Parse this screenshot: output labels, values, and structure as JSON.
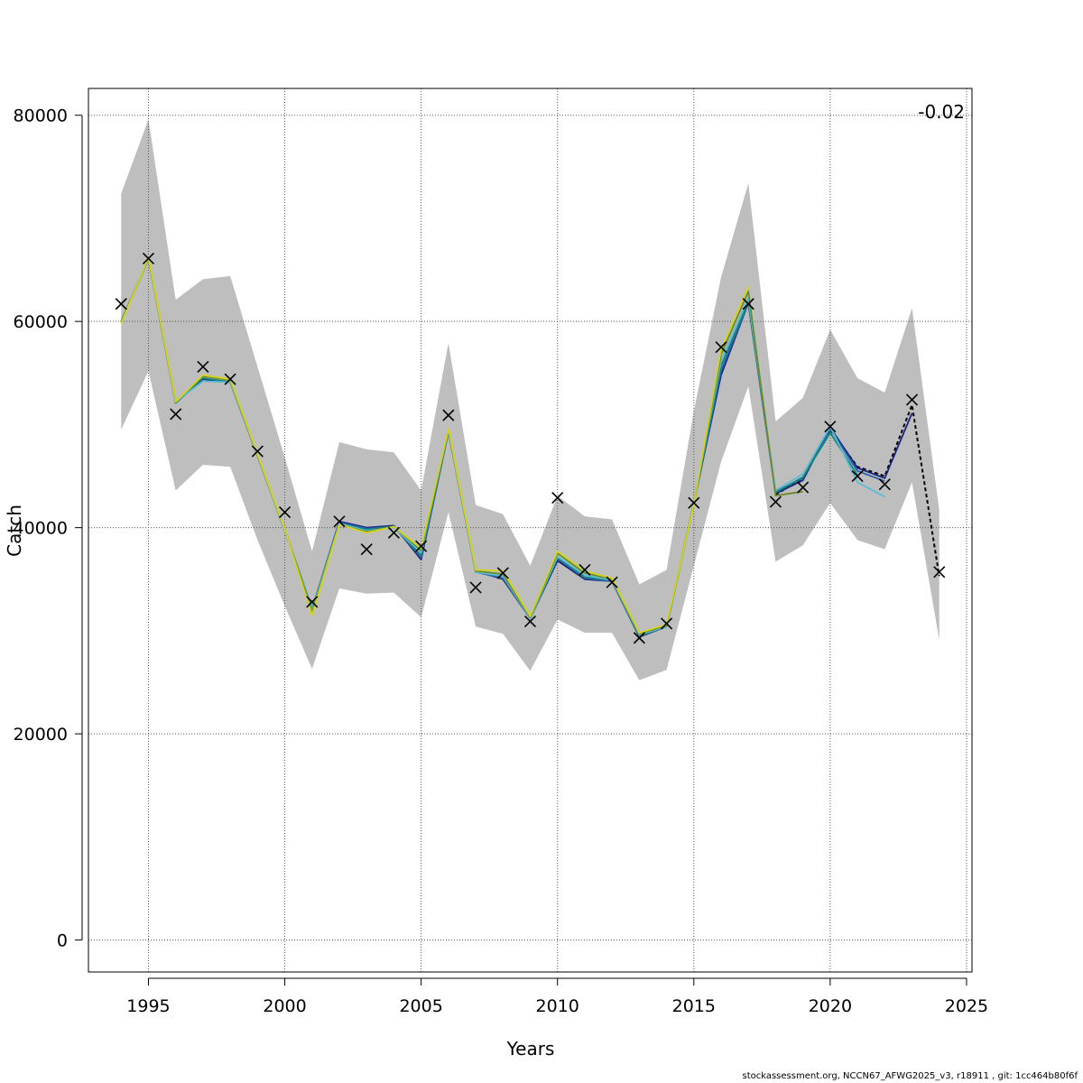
{
  "chart_data": {
    "type": "line",
    "xlabel": "Years",
    "ylabel": "Catch",
    "xlim": [
      1992.8,
      2025.2
    ],
    "ylim": [
      -3100,
      82600
    ],
    "grid": true,
    "annotation": "-0.02",
    "footer": "stockassessment.org, NCCN67_AFWG2025_v3, r18911 , git: 1cc464b80f6f",
    "x_ticks": [
      1995,
      2000,
      2005,
      2010,
      2015,
      2020,
      2025
    ],
    "y_ticks": [
      0,
      20000,
      40000,
      60000,
      80000
    ],
    "band": {
      "color": "#bebebe",
      "x": [
        1994,
        1995,
        1996,
        1997,
        1998,
        1999,
        2000,
        2001,
        2002,
        2003,
        2004,
        2005,
        2006,
        2007,
        2008,
        2009,
        2010,
        2011,
        2012,
        2013,
        2014,
        2015,
        2016,
        2017,
        2018,
        2019,
        2020,
        2021,
        2022,
        2023,
        2024
      ],
      "lower": [
        49500,
        55200,
        43600,
        46100,
        45900,
        38800,
        32400,
        26300,
        34100,
        33600,
        33700,
        31300,
        41500,
        30400,
        29700,
        26100,
        31100,
        29800,
        29800,
        25200,
        26200,
        36300,
        46400,
        53700,
        36700,
        38300,
        42400,
        38800,
        37900,
        44400,
        29100
      ],
      "upper": [
        72400,
        79600,
        62100,
        64100,
        64400,
        55600,
        46800,
        37700,
        48300,
        47600,
        47300,
        43600,
        57900,
        42200,
        41300,
        36300,
        43100,
        41100,
        40800,
        34500,
        35900,
        51300,
        64300,
        73400,
        50300,
        52600,
        59200,
        54500,
        53100,
        61300,
        41700
      ]
    },
    "observed": {
      "marker": "x",
      "x": [
        1994,
        1995,
        1996,
        1997,
        1998,
        1999,
        2000,
        2001,
        2002,
        2003,
        2004,
        2005,
        2006,
        2007,
        2008,
        2009,
        2010,
        2011,
        2012,
        2013,
        2014,
        2015,
        2016,
        2017,
        2018,
        2019,
        2020,
        2021,
        2022,
        2023,
        2024
      ],
      "y": [
        61700,
        66100,
        51000,
        55600,
        54400,
        47400,
        41500,
        32800,
        40600,
        37900,
        39500,
        38200,
        50900,
        34200,
        35600,
        30900,
        42900,
        35900,
        34700,
        29300,
        30700,
        42400,
        57500,
        61700,
        42500,
        43900,
        49800,
        45000,
        44200,
        52400,
        35700
      ]
    },
    "series": [
      {
        "color": "#000000",
        "dashed": true,
        "x": [
          2018,
          2019,
          2020,
          2021,
          2022,
          2023,
          2024
        ],
        "y": [
          43200,
          44800,
          49500,
          45900,
          45000,
          51900,
          35300
        ]
      },
      {
        "color": "#1a237e",
        "x": [
          1994,
          1995,
          1996,
          1997,
          1998,
          1999,
          2000,
          2001,
          2002,
          2003,
          2004,
          2005,
          2006,
          2007,
          2008,
          2009,
          2010,
          2011,
          2012,
          2013,
          2014,
          2015,
          2016,
          2017,
          2018,
          2019,
          2020,
          2021,
          2022,
          2023
        ],
        "y": [
          59900,
          66100,
          52100,
          54400,
          54100,
          47000,
          39700,
          32100,
          40600,
          40000,
          40200,
          36900,
          49300,
          35800,
          35000,
          31200,
          36800,
          35000,
          34800,
          29400,
          30400,
          42400,
          54800,
          61800,
          43300,
          44600,
          49700,
          45800,
          44800,
          51100
        ]
      },
      {
        "color": "#2a5faa",
        "x": [
          1994,
          1995,
          1996,
          1997,
          1998,
          1999,
          2000,
          2001,
          2002,
          2003,
          2004,
          2005,
          2006,
          2007,
          2008,
          2009,
          2010,
          2011,
          2012,
          2013,
          2014,
          2015,
          2016,
          2017,
          2018,
          2019,
          2020,
          2021,
          2022
        ],
        "y": [
          60000,
          66100,
          52100,
          54500,
          54100,
          47000,
          39700,
          32100,
          40500,
          39900,
          40100,
          37100,
          49400,
          35700,
          35100,
          31200,
          37000,
          35100,
          34800,
          29500,
          30400,
          42400,
          55200,
          61800,
          43500,
          44800,
          49600,
          45500,
          44500
        ]
      },
      {
        "color": "#12877a",
        "x": [
          1994,
          1995,
          1996,
          1997,
          1998,
          1999,
          2000,
          2001,
          2002,
          2003,
          2004,
          2005,
          2006,
          2007,
          2008,
          2009,
          2010,
          2011,
          2012,
          2013,
          2014,
          2015,
          2016,
          2017,
          2018,
          2019,
          2020,
          2021
        ],
        "y": [
          60000,
          66100,
          52100,
          54500,
          54100,
          47000,
          39700,
          32100,
          40400,
          39800,
          40100,
          37300,
          49400,
          35700,
          35300,
          31200,
          37100,
          35200,
          34900,
          29500,
          30400,
          42400,
          55700,
          61900,
          43400,
          44900,
          49200,
          45100
        ]
      },
      {
        "color": "#5bbcd6",
        "x": [
          1994,
          1995,
          1996,
          1997,
          1998,
          1999,
          2000,
          2001,
          2002,
          2003,
          2004,
          2005,
          2006,
          2007,
          2008,
          2009,
          2010,
          2011,
          2012,
          2013,
          2014,
          2015,
          2016,
          2017,
          2018,
          2019,
          2020,
          2021,
          2022
        ],
        "y": [
          60000,
          66100,
          52200,
          54200,
          54100,
          47000,
          39700,
          32000,
          40400,
          39700,
          40000,
          37600,
          49400,
          35700,
          35300,
          31200,
          37200,
          35400,
          34900,
          29600,
          30400,
          42400,
          56200,
          62300,
          43600,
          45200,
          49800,
          44400,
          43000
        ]
      },
      {
        "color": "#6d8b2a",
        "x": [
          1994,
          1995,
          1996,
          1997,
          1998,
          1999,
          2000,
          2001,
          2002,
          2003,
          2004,
          2005,
          2006,
          2007,
          2008,
          2009,
          2010,
          2011,
          2012,
          2013,
          2014,
          2015,
          2016,
          2017,
          2018,
          2019
        ],
        "y": [
          60000,
          66100,
          52200,
          54700,
          54300,
          47000,
          39800,
          31800,
          40300,
          39600,
          40100,
          37800,
          49500,
          35800,
          35500,
          31300,
          37500,
          35600,
          35000,
          29700,
          30500,
          42400,
          56800,
          62900,
          43100,
          43500
        ]
      },
      {
        "color": "#d4d41e",
        "x": [
          1994,
          1995,
          1996,
          1997,
          1998,
          1999,
          2000,
          2001,
          2002,
          2003,
          2004,
          2005,
          2006,
          2007,
          2008,
          2009,
          2010,
          2011,
          2012,
          2013,
          2014,
          2015,
          2016,
          2017
        ],
        "y": [
          59800,
          66200,
          52200,
          54800,
          54400,
          47100,
          39800,
          31500,
          40300,
          39500,
          40100,
          38000,
          49600,
          35900,
          35800,
          31400,
          37700,
          35800,
          35100,
          29800,
          30600,
          42300,
          57300,
          63400
        ]
      }
    ]
  }
}
